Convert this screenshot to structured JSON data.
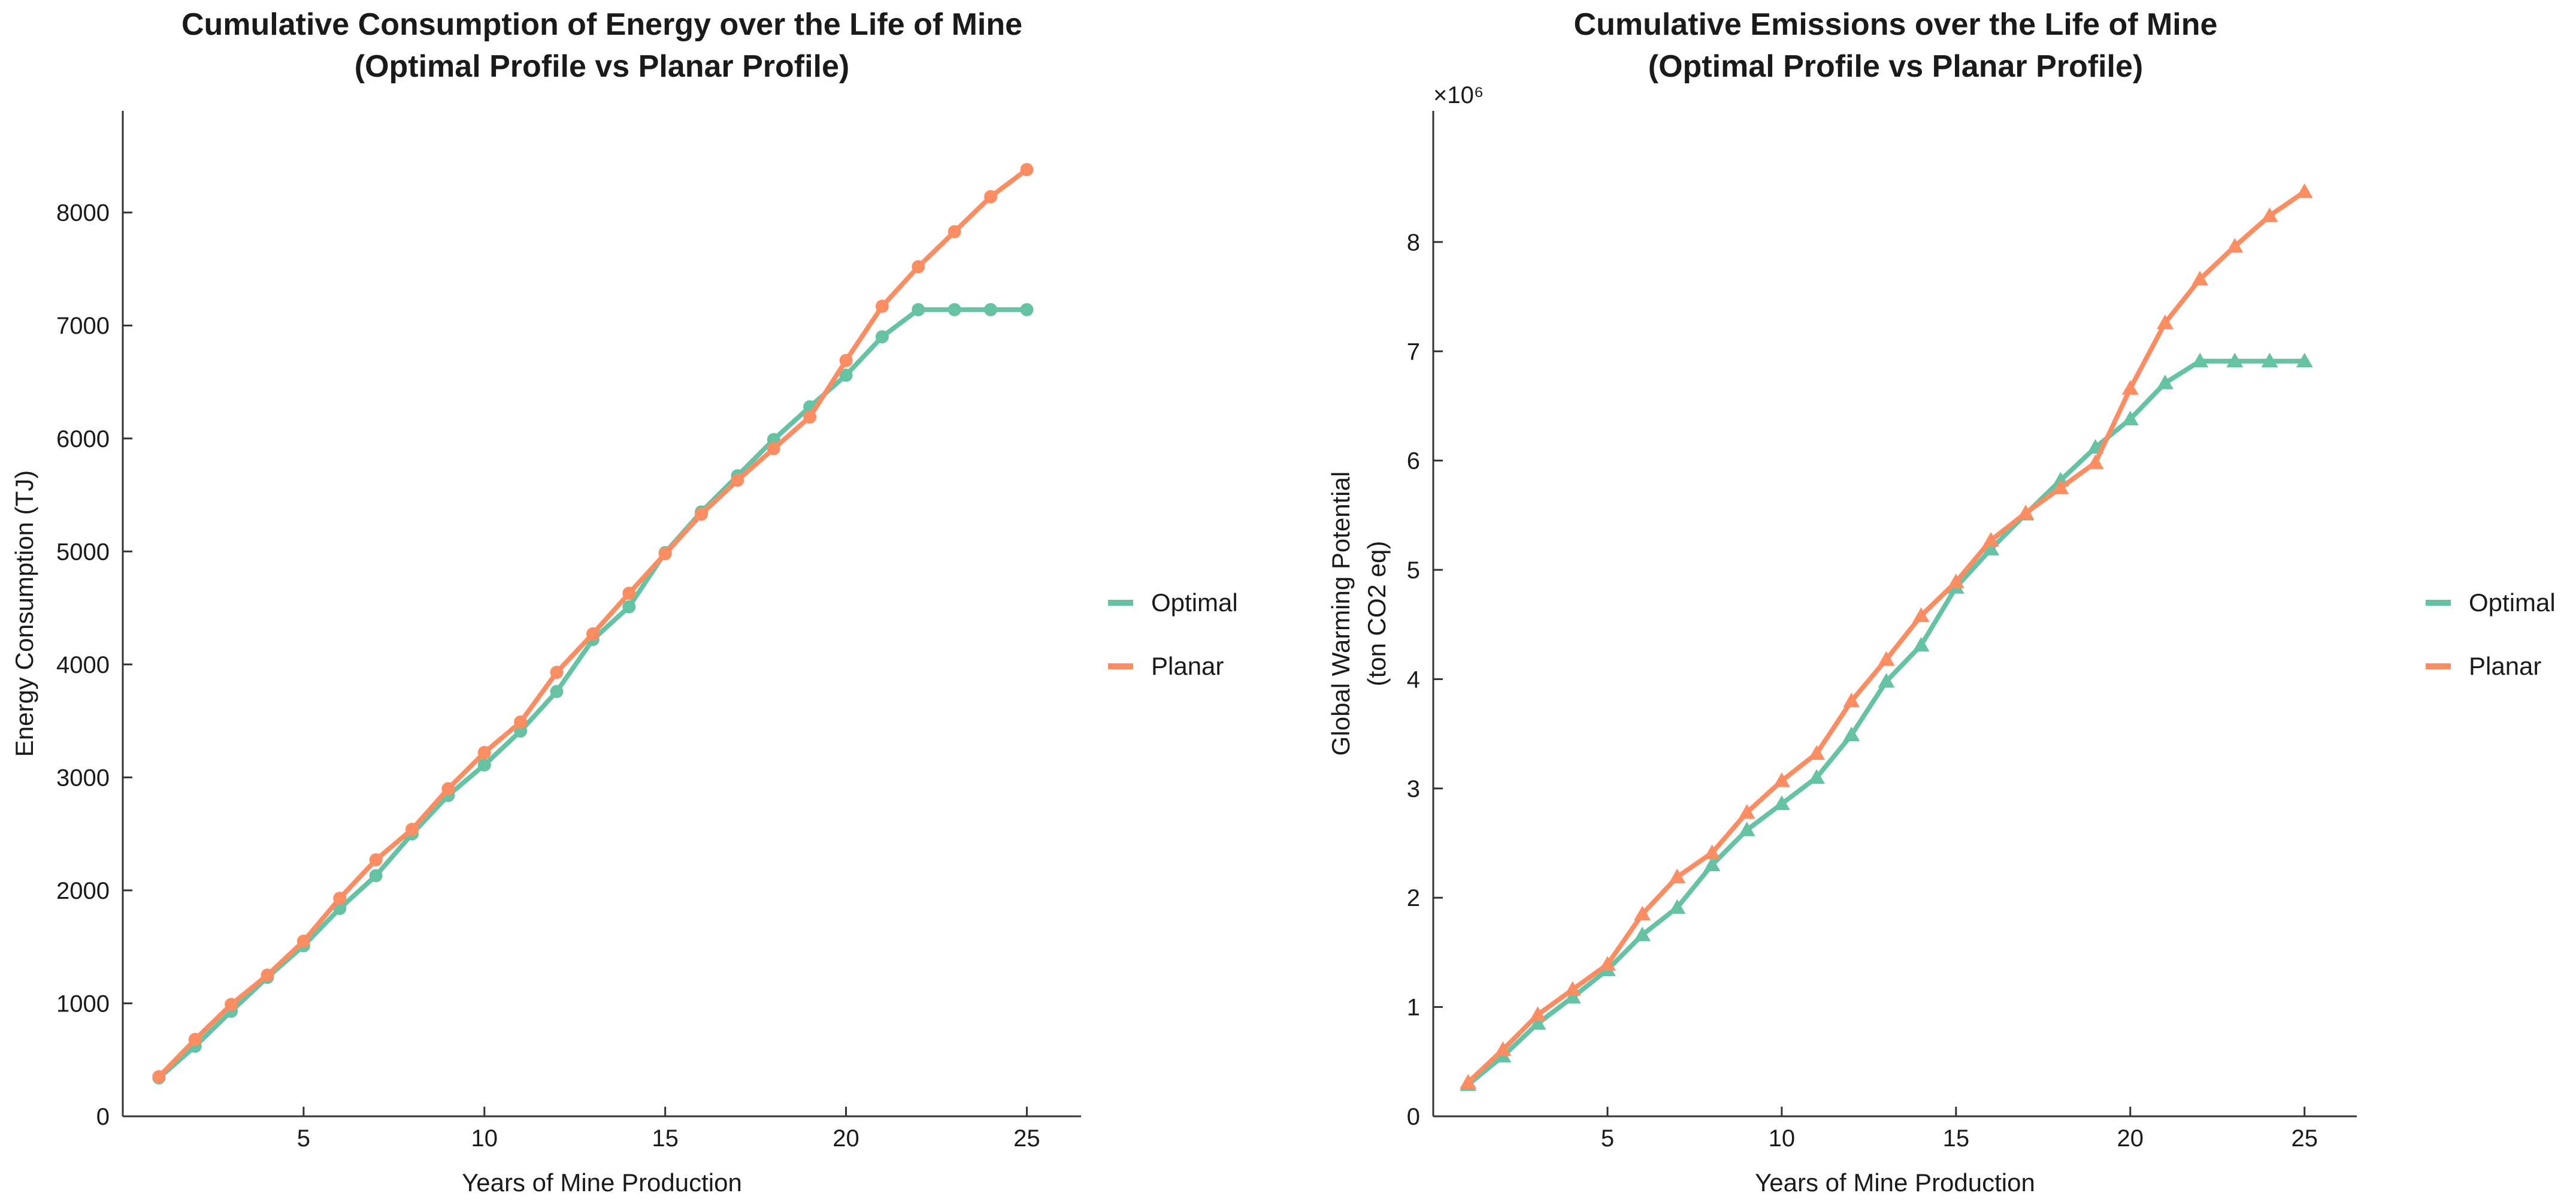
{
  "chart_data": [
    {
      "type": "line",
      "title": [
        "Cumulative Consumption of Energy over the Life of Mine",
        "(Optimal Profile vs Planar Profile)"
      ],
      "xlabel": "Years of Mine Production",
      "ylabel": [
        "Energy Consumption (TJ)"
      ],
      "multiplier": "",
      "xlim": [
        0,
        26.5
      ],
      "ylim": [
        0,
        8900
      ],
      "xticks": [
        5,
        10,
        15,
        20,
        25
      ],
      "yticks": [
        0,
        1000,
        2000,
        3000,
        4000,
        5000,
        6000,
        7000,
        8000
      ],
      "marker": "circle",
      "grid": false,
      "legend_position": "right",
      "x": [
        1,
        2,
        3,
        4,
        5,
        6,
        7,
        8,
        9,
        10,
        11,
        12,
        13,
        14,
        15,
        16,
        17,
        18,
        19,
        20,
        21,
        22,
        23,
        24,
        25
      ],
      "series": [
        {
          "name": "Optimal",
          "color": "#66c2a5",
          "values": [
            340,
            620,
            930,
            1230,
            1510,
            1840,
            2130,
            2500,
            2840,
            3110,
            3410,
            3760,
            4220,
            4510,
            4990,
            5350,
            5670,
            5990,
            6280,
            6560,
            6900,
            7140,
            7140,
            7140,
            7140
          ]
        },
        {
          "name": "Planar",
          "color": "#fc8d62",
          "values": [
            350,
            680,
            990,
            1250,
            1550,
            1930,
            2270,
            2540,
            2900,
            3220,
            3490,
            3930,
            4270,
            4630,
            4980,
            5330,
            5630,
            5910,
            6190,
            6690,
            7170,
            7520,
            7830,
            8140,
            8380
          ]
        }
      ]
    },
    {
      "type": "line",
      "title": [
        "Cumulative Emissions over the Life of Mine",
        "(Optimal Profile vs Planar Profile)"
      ],
      "xlabel": "Years of Mine Production",
      "ylabel": [
        "Global Warming Potential",
        "(ton CO2 eq)"
      ],
      "multiplier": "×10⁶",
      "xlim": [
        0,
        26.5
      ],
      "ylim": [
        0,
        9.2
      ],
      "xticks": [
        5,
        10,
        15,
        20,
        25
      ],
      "yticks": [
        0,
        1,
        2,
        3,
        4,
        5,
        6,
        7,
        8
      ],
      "marker": "triangle",
      "grid": false,
      "legend_position": "right",
      "x": [
        1,
        2,
        3,
        4,
        5,
        6,
        7,
        8,
        9,
        10,
        11,
        12,
        13,
        14,
        15,
        16,
        17,
        18,
        19,
        20,
        21,
        22,
        23,
        24,
        25
      ],
      "series": [
        {
          "name": "Optimal",
          "color": "#66c2a5",
          "values": [
            0.29,
            0.55,
            0.85,
            1.09,
            1.34,
            1.66,
            1.91,
            2.3,
            2.62,
            2.86,
            3.1,
            3.49,
            3.98,
            4.31,
            4.84,
            5.19,
            5.51,
            5.82,
            6.12,
            6.38,
            6.71,
            6.91,
            6.91,
            6.91,
            6.91
          ]
        },
        {
          "name": "Planar",
          "color": "#fc8d62",
          "values": [
            0.31,
            0.61,
            0.93,
            1.16,
            1.39,
            1.85,
            2.19,
            2.41,
            2.78,
            3.07,
            3.32,
            3.8,
            4.18,
            4.58,
            4.89,
            5.27,
            5.52,
            5.75,
            5.98,
            6.66,
            7.26,
            7.66,
            7.96,
            8.24,
            8.46
          ]
        }
      ]
    }
  ]
}
